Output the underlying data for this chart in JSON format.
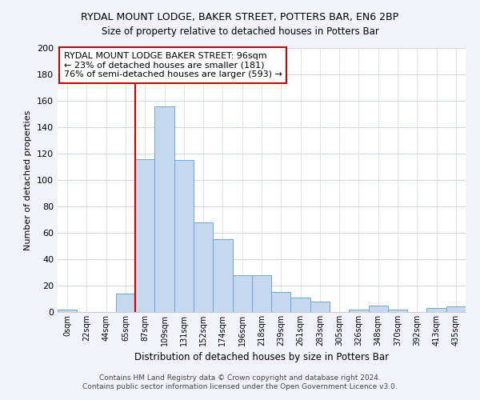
{
  "title1": "RYDAL MOUNT LODGE, BAKER STREET, POTTERS BAR, EN6 2BP",
  "title2": "Size of property relative to detached houses in Potters Bar",
  "xlabel": "Distribution of detached houses by size in Potters Bar",
  "ylabel": "Number of detached properties",
  "bin_labels": [
    "0sqm",
    "22sqm",
    "44sqm",
    "65sqm",
    "87sqm",
    "109sqm",
    "131sqm",
    "152sqm",
    "174sqm",
    "196sqm",
    "218sqm",
    "239sqm",
    "261sqm",
    "283sqm",
    "305sqm",
    "326sqm",
    "348sqm",
    "370sqm",
    "392sqm",
    "413sqm",
    "435sqm"
  ],
  "bar_values": [
    2,
    0,
    0,
    14,
    116,
    156,
    115,
    68,
    55,
    28,
    28,
    15,
    11,
    8,
    0,
    2,
    5,
    2,
    0,
    3,
    4
  ],
  "bar_color": "#C5D8F0",
  "bar_edge_color": "#6AA8D0",
  "property_bin_index": 4,
  "annotation_text": "RYDAL MOUNT LODGE BAKER STREET: 96sqm\n← 23% of detached houses are smaller (181)\n76% of semi-detached houses are larger (593) →",
  "annotation_box_color": "#ffffff",
  "annotation_box_edge_color": "#cc0000",
  "vline_color": "#cc0000",
  "ylim": [
    0,
    200
  ],
  "yticks": [
    0,
    20,
    40,
    60,
    80,
    100,
    120,
    140,
    160,
    180,
    200
  ],
  "footer1": "Contains HM Land Registry data © Crown copyright and database right 2024.",
  "footer2": "Contains public sector information licensed under the Open Government Licence v3.0.",
  "bg_color": "#f0f4fa",
  "plot_bg_color": "#ffffff",
  "grid_color": "#d0d8e8",
  "title1_fontsize": 9,
  "title2_fontsize": 9
}
